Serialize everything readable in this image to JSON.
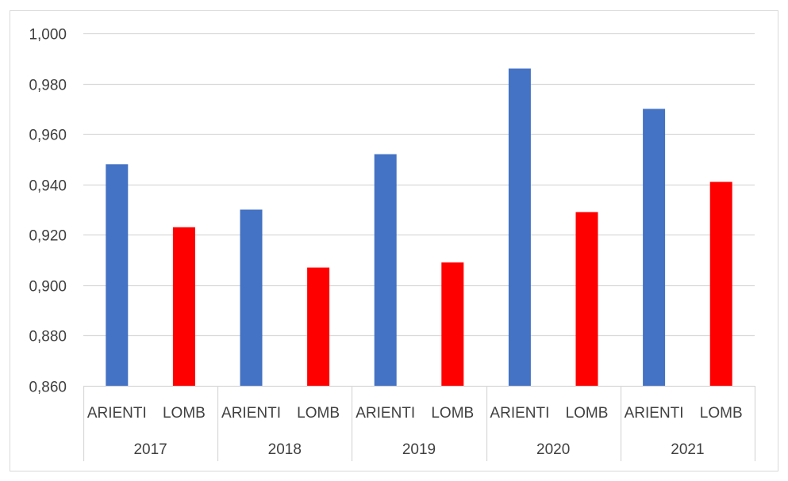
{
  "chart_data": {
    "type": "bar",
    "title": "",
    "xlabel": "",
    "ylabel": "",
    "ylim": [
      0.86,
      1.0
    ],
    "ytick_step": 0.02,
    "yticks": [
      "0,860",
      "0,880",
      "0,900",
      "0,920",
      "0,940",
      "0,960",
      "0,980",
      "1,000"
    ],
    "grid": true,
    "legend": "none",
    "groups": [
      "2017",
      "2018",
      "2019",
      "2020",
      "2021"
    ],
    "subcategories": [
      "ARIENTI",
      "LOMB"
    ],
    "series": [
      {
        "key": "ARIENTI",
        "color": "#4472c4",
        "values": [
          0.948,
          0.93,
          0.952,
          0.986,
          0.97
        ]
      },
      {
        "key": "LOMB",
        "color": "#ff0000",
        "values": [
          0.923,
          0.907,
          0.909,
          0.929,
          0.941
        ]
      }
    ]
  },
  "colors": {
    "grid": "#d9d9d9",
    "axis_text": "#404040"
  }
}
